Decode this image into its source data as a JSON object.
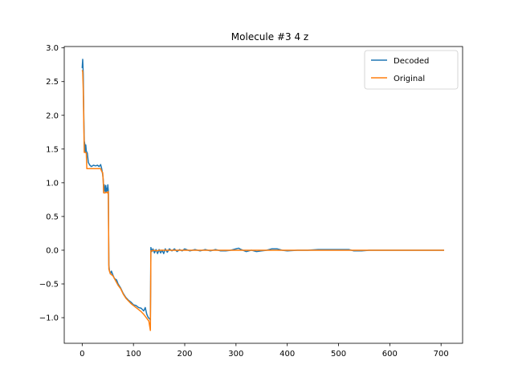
{
  "chart_data": {
    "type": "line",
    "title": "Molecule #3 4 z",
    "xlabel": "",
    "ylabel": "",
    "xlim": [
      -35,
      742
    ],
    "ylim": [
      -1.38,
      3.02
    ],
    "x_ticks": [
      0,
      100,
      200,
      300,
      400,
      500,
      600,
      700
    ],
    "y_ticks": [
      -1.0,
      -0.5,
      0.0,
      0.5,
      1.0,
      1.5,
      2.0,
      2.5,
      3.0
    ],
    "x_tick_labels": [
      "0",
      "100",
      "200",
      "300",
      "400",
      "500",
      "600",
      "700"
    ],
    "y_tick_labels": [
      "−1.0",
      "−0.5",
      "0.0",
      "0.5",
      "1.0",
      "1.5",
      "2.0",
      "2.5",
      "3.0"
    ],
    "grid": false,
    "legend_position": "top-right",
    "series": [
      {
        "name": "Decoded",
        "color": "#1f77b4",
        "points": [
          [
            0,
            2.7
          ],
          [
            1,
            2.83
          ],
          [
            2,
            2.62
          ],
          [
            3,
            2.05
          ],
          [
            4,
            1.62
          ],
          [
            5,
            1.58
          ],
          [
            6,
            1.45
          ],
          [
            7,
            1.56
          ],
          [
            8,
            1.47
          ],
          [
            10,
            1.44
          ],
          [
            12,
            1.3
          ],
          [
            15,
            1.26
          ],
          [
            18,
            1.24
          ],
          [
            22,
            1.26
          ],
          [
            26,
            1.25
          ],
          [
            30,
            1.26
          ],
          [
            33,
            1.24
          ],
          [
            36,
            1.27
          ],
          [
            38,
            1.21
          ],
          [
            40,
            1.12
          ],
          [
            41,
            1.05
          ],
          [
            42,
            0.85
          ],
          [
            43,
            0.97
          ],
          [
            44,
            0.9
          ],
          [
            45,
            0.87
          ],
          [
            46,
            0.96
          ],
          [
            47,
            0.86
          ],
          [
            48,
            0.92
          ],
          [
            49,
            0.88
          ],
          [
            50,
            0.97
          ],
          [
            51,
            0.87
          ],
          [
            52,
            -0.22
          ],
          [
            53,
            -0.3
          ],
          [
            55,
            -0.35
          ],
          [
            57,
            -0.31
          ],
          [
            60,
            -0.37
          ],
          [
            63,
            -0.42
          ],
          [
            67,
            -0.44
          ],
          [
            70,
            -0.5
          ],
          [
            75,
            -0.56
          ],
          [
            80,
            -0.64
          ],
          [
            85,
            -0.7
          ],
          [
            90,
            -0.74
          ],
          [
            95,
            -0.77
          ],
          [
            100,
            -0.81
          ],
          [
            105,
            -0.82
          ],
          [
            110,
            -0.85
          ],
          [
            115,
            -0.86
          ],
          [
            120,
            -0.9
          ],
          [
            123,
            -0.85
          ],
          [
            126,
            -0.95
          ],
          [
            129,
            -1.0
          ],
          [
            132,
            -1.02
          ],
          [
            133,
            -1.04
          ],
          [
            134,
            0.04
          ],
          [
            136,
            -0.02
          ],
          [
            138,
            0.02
          ],
          [
            141,
            -0.04
          ],
          [
            144,
            0.01
          ],
          [
            147,
            -0.05
          ],
          [
            150,
            0.01
          ],
          [
            153,
            -0.04
          ],
          [
            156,
            0.0
          ],
          [
            159,
            -0.05
          ],
          [
            162,
            0.02
          ],
          [
            166,
            -0.03
          ],
          [
            170,
            0.02
          ],
          [
            175,
            -0.01
          ],
          [
            180,
            0.02
          ],
          [
            185,
            -0.02
          ],
          [
            190,
            0.01
          ],
          [
            195,
            -0.01
          ],
          [
            200,
            0.02
          ],
          [
            210,
            -0.01
          ],
          [
            220,
            0.01
          ],
          [
            230,
            -0.01
          ],
          [
            240,
            0.01
          ],
          [
            250,
            -0.01
          ],
          [
            260,
            0.01
          ],
          [
            270,
            -0.01
          ],
          [
            280,
            -0.01
          ],
          [
            290,
            0.0
          ],
          [
            300,
            0.02
          ],
          [
            305,
            0.03
          ],
          [
            310,
            0.01
          ],
          [
            320,
            -0.02
          ],
          [
            330,
            0.0
          ],
          [
            340,
            -0.02
          ],
          [
            350,
            -0.01
          ],
          [
            360,
            0.0
          ],
          [
            370,
            0.02
          ],
          [
            380,
            0.02
          ],
          [
            390,
            0.0
          ],
          [
            400,
            -0.01
          ],
          [
            420,
            0.0
          ],
          [
            440,
            0.0
          ],
          [
            460,
            0.01
          ],
          [
            480,
            0.01
          ],
          [
            500,
            0.01
          ],
          [
            520,
            0.01
          ],
          [
            530,
            -0.01
          ],
          [
            545,
            -0.01
          ],
          [
            560,
            0.0
          ],
          [
            580,
            0.0
          ],
          [
            600,
            0.0
          ],
          [
            620,
            0.0
          ],
          [
            640,
            0.0
          ],
          [
            660,
            0.0
          ],
          [
            680,
            0.0
          ],
          [
            706,
            0.0
          ]
        ]
      },
      {
        "name": "Original",
        "color": "#ff7f0e",
        "points": [
          [
            0,
            2.67
          ],
          [
            1,
            2.65
          ],
          [
            2,
            2.4
          ],
          [
            3,
            1.95
          ],
          [
            4,
            1.45
          ],
          [
            6,
            1.45
          ],
          [
            8,
            1.44
          ],
          [
            9,
            1.21
          ],
          [
            12,
            1.21
          ],
          [
            20,
            1.21
          ],
          [
            28,
            1.21
          ],
          [
            36,
            1.21
          ],
          [
            38,
            1.17
          ],
          [
            40,
            1.15
          ],
          [
            41,
            1.03
          ],
          [
            42,
            0.85
          ],
          [
            45,
            0.85
          ],
          [
            47,
            0.86
          ],
          [
            49,
            0.85
          ],
          [
            51,
            0.87
          ],
          [
            52,
            -0.28
          ],
          [
            55,
            -0.35
          ],
          [
            60,
            -0.38
          ],
          [
            65,
            -0.45
          ],
          [
            70,
            -0.52
          ],
          [
            75,
            -0.57
          ],
          [
            80,
            -0.65
          ],
          [
            85,
            -0.71
          ],
          [
            90,
            -0.75
          ],
          [
            95,
            -0.79
          ],
          [
            100,
            -0.82
          ],
          [
            105,
            -0.85
          ],
          [
            110,
            -0.88
          ],
          [
            115,
            -0.91
          ],
          [
            120,
            -0.95
          ],
          [
            125,
            -1.0
          ],
          [
            130,
            -1.05
          ],
          [
            133,
            -1.19
          ],
          [
            134,
            -0.01
          ],
          [
            136,
            -0.01
          ],
          [
            140,
            0.0
          ],
          [
            145,
            -0.01
          ],
          [
            150,
            0.0
          ],
          [
            160,
            0.0
          ],
          [
            170,
            0.0
          ],
          [
            180,
            0.0
          ],
          [
            200,
            0.0
          ],
          [
            300,
            0.0
          ],
          [
            400,
            0.0
          ],
          [
            500,
            0.0
          ],
          [
            600,
            0.0
          ],
          [
            706,
            0.0
          ]
        ]
      }
    ]
  }
}
